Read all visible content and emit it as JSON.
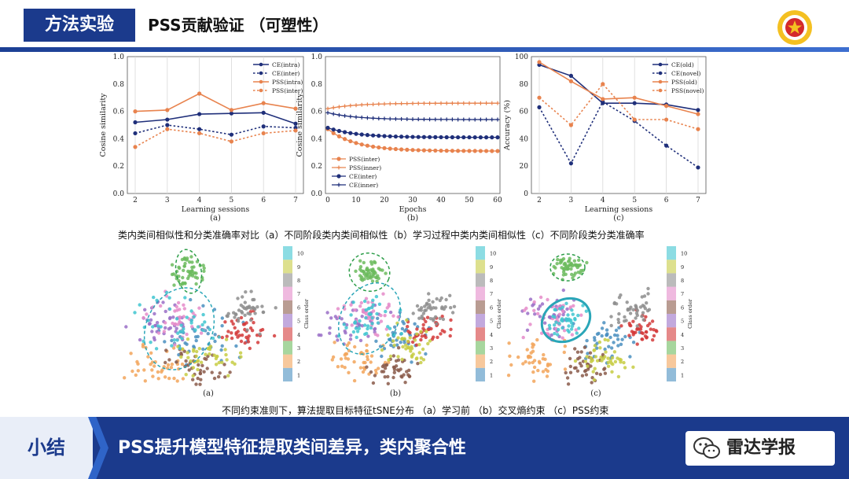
{
  "header": {
    "section": "方法实验",
    "title": "PSS贡献验证 （可塑性）",
    "logo_icon": "university-emblem"
  },
  "captions": {
    "fig1": "类内类间相似性和分类准确率对比（a）不同阶段类内类间相似性（b）学习过程中类内类间相似性（c）不同阶段类分类准确率",
    "fig2": "不同约束准则下，算法提取目标特征tSNE分布 （a）学习前 （b）交叉熵约束 （c）PSS约束"
  },
  "footer": {
    "label": "小结",
    "summary": "PSS提升模型特征提取类间差异，类内聚合性",
    "brand": "雷达学报",
    "brand_icon": "wechat-icon"
  },
  "colors": {
    "ce": "#1f2f7a",
    "pss": "#e8834e",
    "blue_bar": "#1b3a8c"
  },
  "chart_data": [
    {
      "type": "line",
      "panel": "(a)",
      "xlabel": "Learning sessions",
      "ylabel": "Cosine similarity",
      "x": [
        2,
        3,
        4,
        5,
        6,
        7
      ],
      "ylim": [
        0,
        1.0
      ],
      "yticks": [
        "0.0",
        "0.2",
        "0.4",
        "0.6",
        "0.8",
        "1.0"
      ],
      "series": [
        {
          "name": "CE(intra)",
          "color": "#1f2f7a",
          "dash": false,
          "values": [
            0.52,
            0.54,
            0.58,
            0.585,
            0.59,
            0.51
          ]
        },
        {
          "name": "CE(inter)",
          "color": "#1f2f7a",
          "dash": true,
          "values": [
            0.44,
            0.5,
            0.47,
            0.43,
            0.49,
            0.48
          ]
        },
        {
          "name": "PSS(intra)",
          "color": "#e8834e",
          "dash": false,
          "values": [
            0.6,
            0.61,
            0.73,
            0.61,
            0.66,
            0.62
          ]
        },
        {
          "name": "PSS(inter)",
          "color": "#e8834e",
          "dash": true,
          "values": [
            0.34,
            0.47,
            0.44,
            0.38,
            0.44,
            0.46
          ]
        }
      ]
    },
    {
      "type": "line",
      "panel": "(b)",
      "xlabel": "Epochs",
      "ylabel": "Cosine similarity",
      "xlim": [
        0,
        60
      ],
      "xticks": [
        0,
        10,
        20,
        30,
        40,
        50,
        60
      ],
      "ylim": [
        0.0,
        1.0
      ],
      "yticks": [
        "0.0",
        "0.2",
        "0.4",
        "0.6",
        "0.8",
        "1.0"
      ],
      "series": [
        {
          "name": "PSS(inter)",
          "color": "#e8834e",
          "marker": "circle",
          "start": 0.47,
          "end": 0.31
        },
        {
          "name": "PSS(inner)",
          "color": "#e8834e",
          "marker": "plus",
          "start": 0.62,
          "end": 0.66
        },
        {
          "name": "CE(inter)",
          "color": "#1f2f7a",
          "marker": "circle",
          "start": 0.48,
          "end": 0.41
        },
        {
          "name": "CE(inner)",
          "color": "#1f2f7a",
          "marker": "plus",
          "start": 0.59,
          "end": 0.54
        }
      ]
    },
    {
      "type": "line",
      "panel": "(c)",
      "xlabel": "Learning sessions",
      "ylabel": "Accuracy (%)",
      "x": [
        2,
        3,
        4,
        5,
        6,
        7
      ],
      "ylim": [
        0,
        100
      ],
      "yticks": [
        "0",
        "20",
        "40",
        "60",
        "80",
        "100"
      ],
      "series": [
        {
          "name": "CE(old)",
          "color": "#1f2f7a",
          "dash": false,
          "values": [
            94,
            86,
            66,
            66,
            65,
            61
          ]
        },
        {
          "name": "CE(novel)",
          "color": "#1f2f7a",
          "dash": true,
          "values": [
            63,
            22,
            67,
            53,
            35,
            19
          ]
        },
        {
          "name": "PSS(old)",
          "color": "#e8834e",
          "dash": false,
          "values": [
            96,
            82,
            69,
            70,
            64,
            58
          ]
        },
        {
          "name": "PSS(novel)",
          "color": "#e8834e",
          "dash": true,
          "values": [
            70,
            50,
            80,
            54,
            54,
            47
          ]
        }
      ]
    },
    {
      "type": "scatter",
      "subtype": "tsne",
      "panels": [
        "(a)",
        "(b)",
        "(c)"
      ],
      "colorbar_label": "Class order",
      "colorbar_ticks": [
        "1",
        "2",
        "3",
        "4",
        "5",
        "6",
        "7",
        "8",
        "9",
        "10"
      ],
      "class_colors": [
        "#4a8fbf",
        "#f2a45a",
        "#6cbb5e",
        "#d43a3a",
        "#9a6fc7",
        "#8a5a4a",
        "#e58bc9",
        "#8d8d8d",
        "#c7cc43",
        "#3fc5d0"
      ]
    }
  ]
}
